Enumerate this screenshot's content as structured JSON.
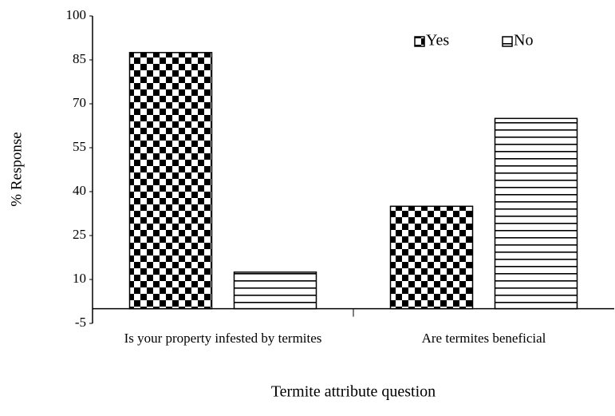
{
  "chart_data": {
    "type": "bar",
    "x_label": "Termite attribute question",
    "y_label": "% Response",
    "categories": [
      "Is your property infested by termites",
      "Are termites beneficial"
    ],
    "series": [
      {
        "name": "Yes",
        "color": "#000000",
        "pattern": "checkerboard",
        "values": [
          87.5,
          35
        ]
      },
      {
        "name": "No",
        "color": "#000000",
        "pattern": "horizontal",
        "values": [
          12.5,
          65
        ]
      }
    ],
    "ylim": [
      -5,
      100
    ],
    "yticks": [
      -5,
      10,
      25,
      40,
      55,
      70,
      85,
      100
    ],
    "grid": false,
    "legend": "upper right"
  }
}
